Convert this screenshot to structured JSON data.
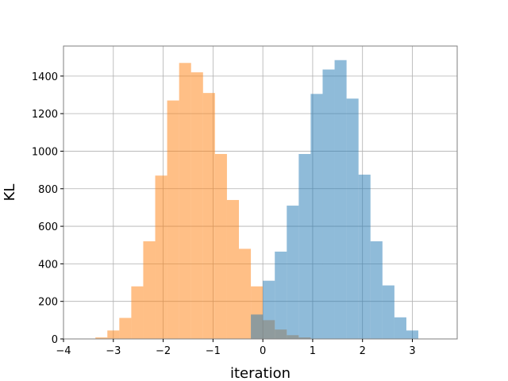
{
  "chart_data": {
    "type": "bar",
    "title": "",
    "xlabel": "iteration",
    "ylabel": "KL",
    "xlim": [
      -4.0,
      3.9
    ],
    "ylim": [
      0,
      1560
    ],
    "xticks": [
      -4,
      -3,
      -2,
      -1,
      0,
      1,
      2,
      3
    ],
    "yticks": [
      0,
      200,
      400,
      600,
      800,
      1000,
      1200,
      1400
    ],
    "grid": true,
    "legend": "none",
    "series": [
      {
        "color": "#ff7f0e",
        "opacity": 0.5,
        "bin_edges": [
          -3.6,
          -3.36,
          -3.12,
          -2.88,
          -2.64,
          -2.4,
          -2.16,
          -1.92,
          -1.68,
          -1.44,
          -1.2,
          -0.96,
          -0.72,
          -0.48,
          -0.24,
          0.0,
          0.24,
          0.48,
          0.72,
          0.96,
          1.2
        ],
        "counts": [
          2,
          8,
          45,
          112,
          280,
          520,
          870,
          1270,
          1470,
          1420,
          1310,
          985,
          740,
          480,
          280,
          100,
          50,
          20,
          8,
          2
        ]
      },
      {
        "color": "#1f77b4",
        "opacity": 0.5,
        "bin_edges": [
          -0.24,
          0.0,
          0.24,
          0.48,
          0.72,
          0.96,
          1.2,
          1.44,
          1.68,
          1.92,
          2.16,
          2.4,
          2.64,
          2.88,
          3.12
        ],
        "counts": [
          130,
          310,
          465,
          710,
          985,
          1305,
          1435,
          1485,
          1280,
          875,
          520,
          285,
          115,
          45,
          5
        ]
      }
    ]
  }
}
